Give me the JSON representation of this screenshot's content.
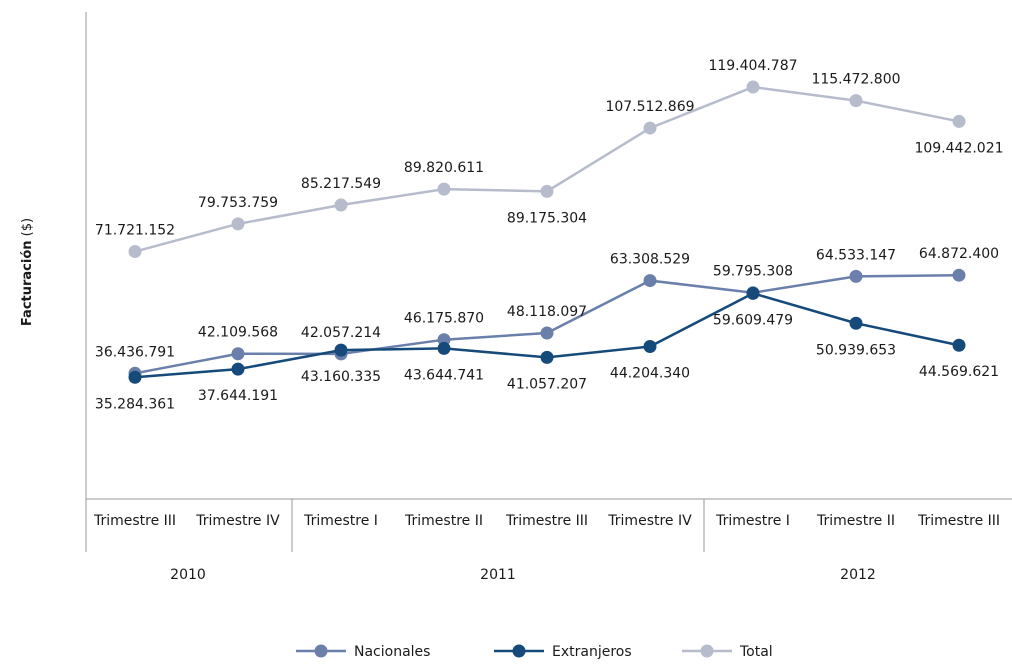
{
  "chart_data": {
    "type": "line",
    "ylabel_main": "Facturación",
    "ylabel_unit": "($)",
    "ylim": [
      0,
      140000000
    ],
    "categories": [
      "Trimestre III",
      "Trimestre IV",
      "Trimestre I",
      "Trimestre II",
      "Trimestre III",
      "Trimestre IV",
      "Trimestre I",
      "Trimestre II",
      "Trimestre III"
    ],
    "years": [
      {
        "label": "2010",
        "count": 2
      },
      {
        "label": "2011",
        "count": 4
      },
      {
        "label": "2012",
        "count": 3
      }
    ],
    "series": [
      {
        "name": "Nacionales",
        "color": "#6b7fab",
        "values": [
          36436791,
          42109568,
          42057214,
          46175870,
          48118097,
          63308529,
          59795308,
          64533147,
          64872400
        ],
        "labels": [
          "36.436.791",
          "42.109.568",
          "42.057.214",
          "46.175.870",
          "48.118.097",
          "63.308.529",
          "59.795.308",
          "64.533.147",
          "64.872.400"
        ]
      },
      {
        "name": "Extranjeros",
        "color": "#154a7a",
        "values": [
          35284361,
          37644191,
          43160335,
          43644741,
          41057207,
          44204340,
          59609479,
          50939653,
          44569621
        ],
        "labels": [
          "35.284.361",
          "37.644.191",
          "43.160.335",
          "43.644.741",
          "41.057.207",
          "44.204.340",
          "59.609.479",
          "50.939.653",
          "44.569.621"
        ]
      },
      {
        "name": "Total",
        "color": "#b6bccb",
        "values": [
          71721152,
          79753759,
          85217549,
          89820611,
          89175304,
          107512869,
          119404787,
          115472800,
          109442021
        ],
        "labels": [
          "71.721.152",
          "79.753.759",
          "85.217.549",
          "89.820.611",
          "89.175.304",
          "107.512.869",
          "119.404.787",
          "115.472.800",
          "109.442.021"
        ]
      }
    ],
    "axis_color": "#9a9a9a",
    "legend_position": "bottom"
  }
}
